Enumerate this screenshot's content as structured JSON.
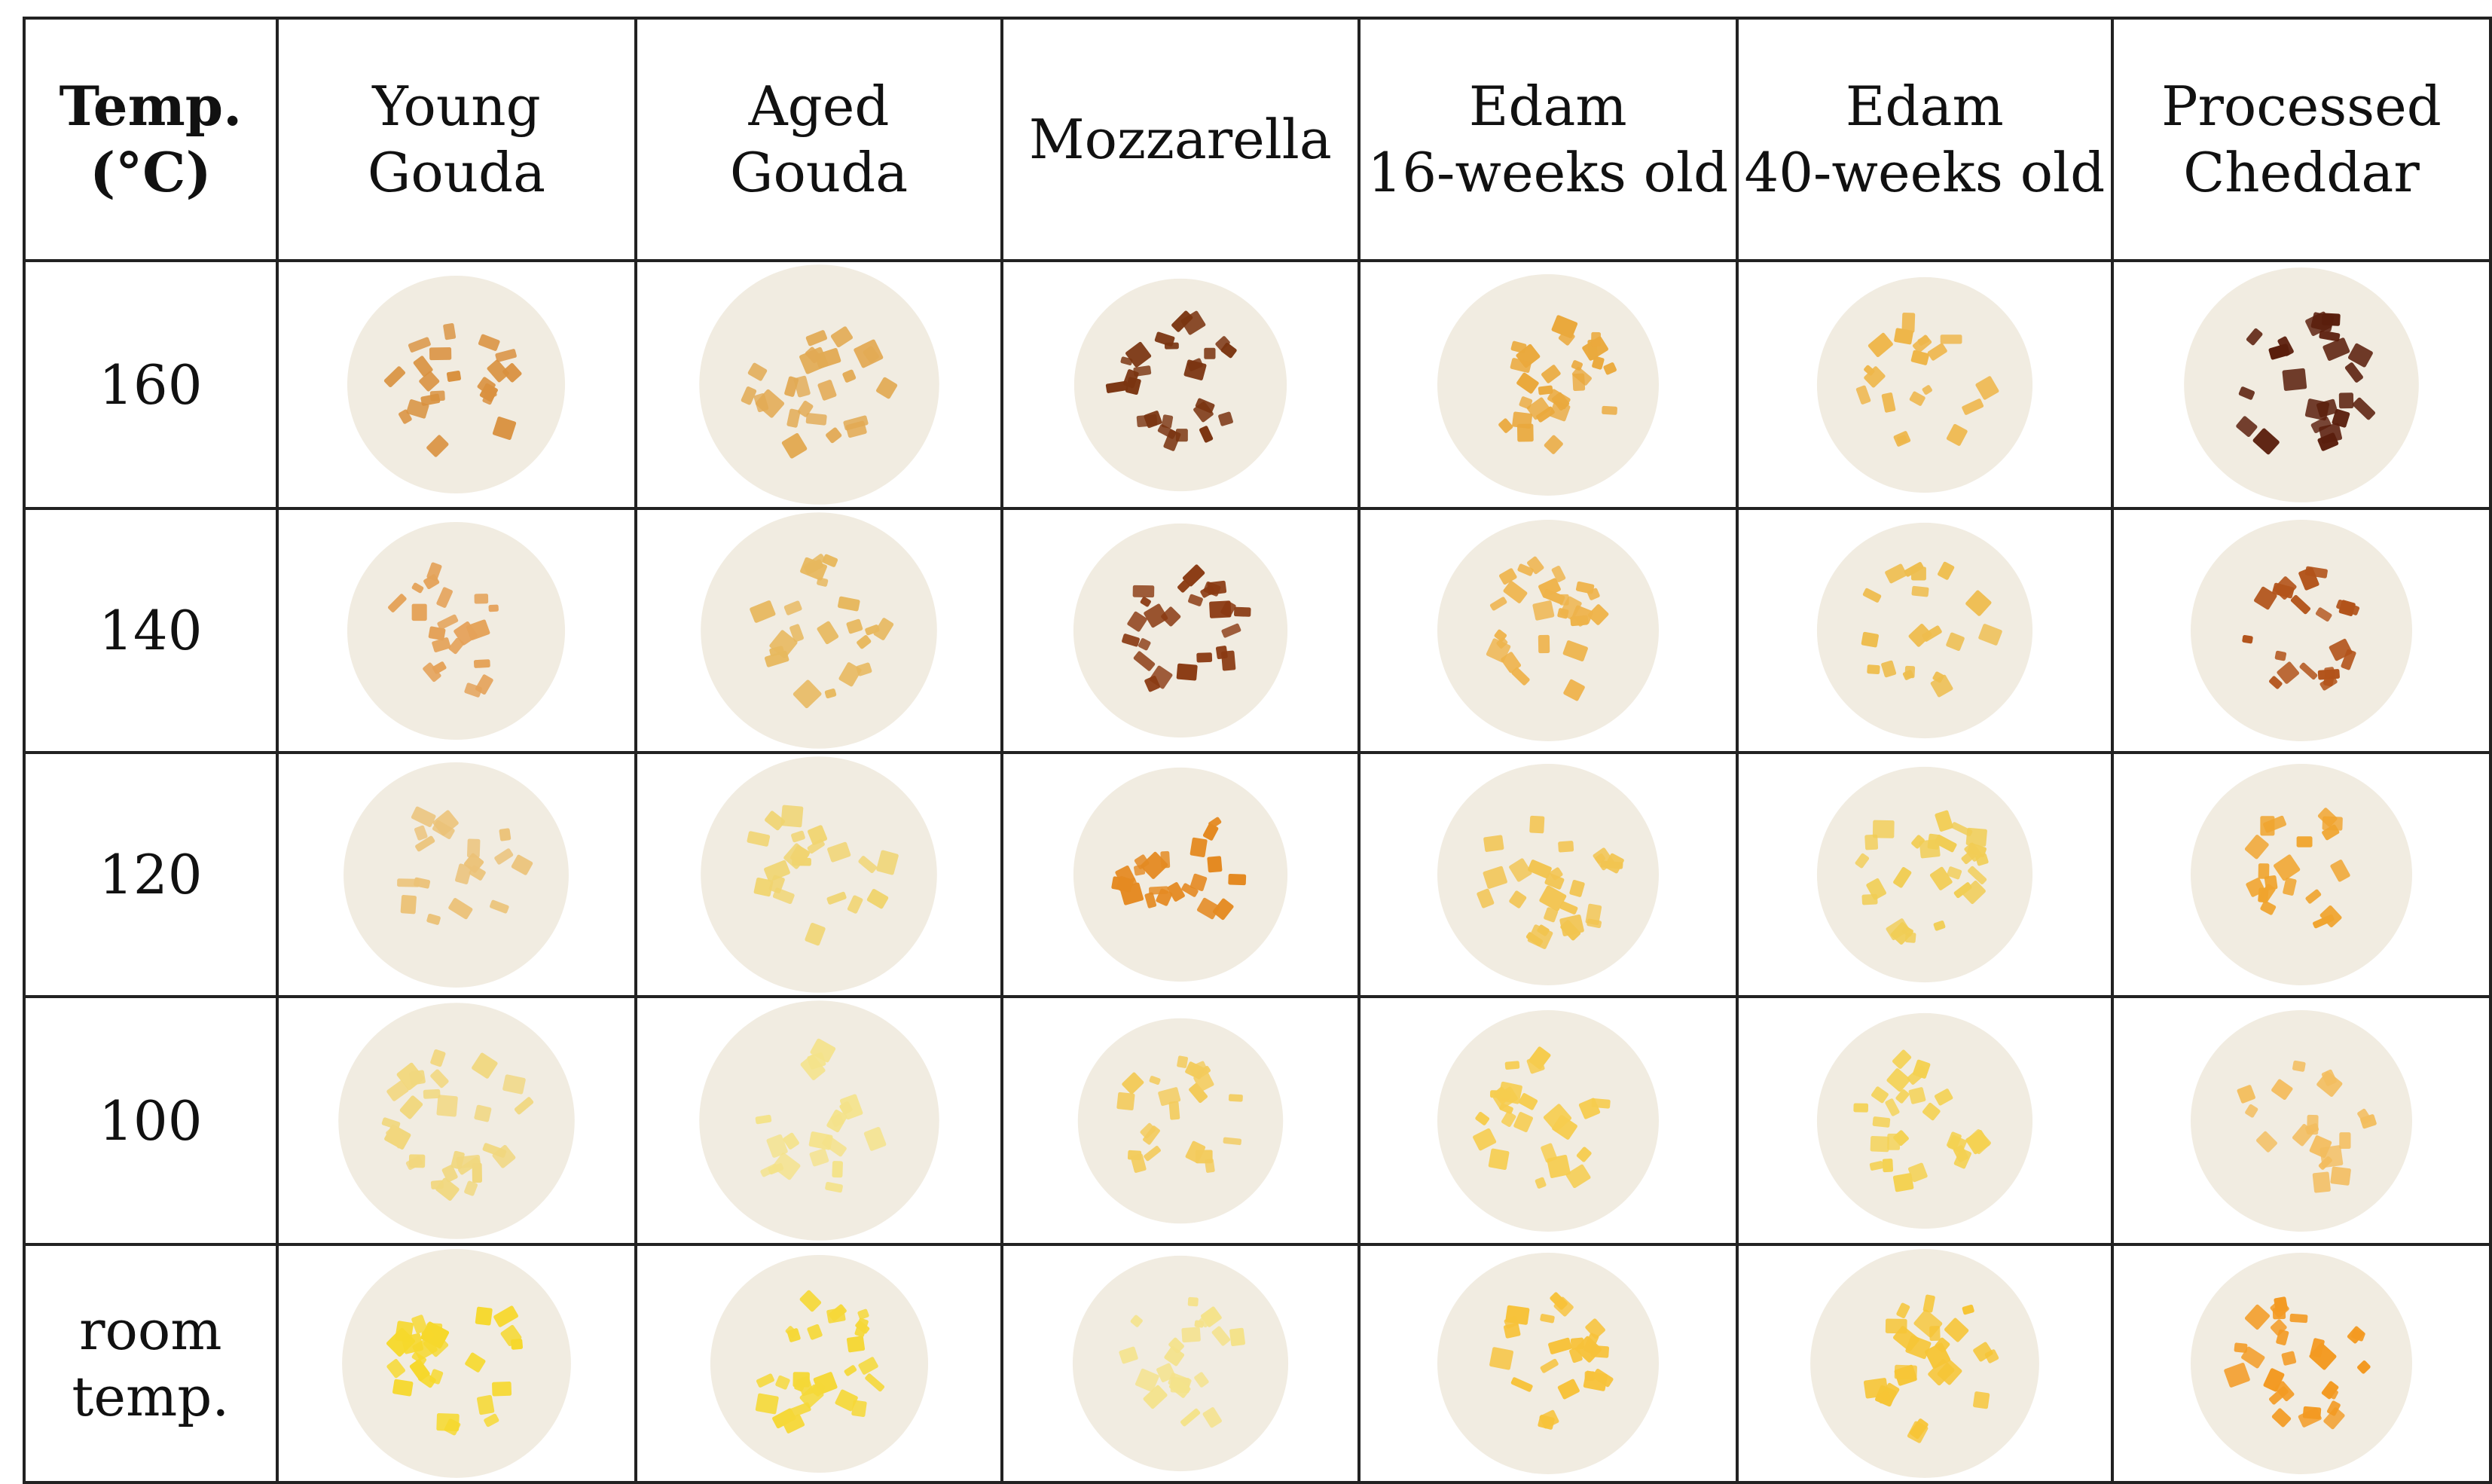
{
  "table": {
    "headers": [
      {
        "line1": "Temp.",
        "line2": "(°C)"
      },
      {
        "line1": "Young",
        "line2": "Gouda"
      },
      {
        "line1": "Aged",
        "line2": "Gouda"
      },
      {
        "line1": "Mozzarella",
        "line2": ""
      },
      {
        "line1": "Edam",
        "line2": "16-weeks old"
      },
      {
        "line1": "Edam",
        "line2": "40-weeks old"
      },
      {
        "line1": "Processed",
        "line2": "Cheddar"
      }
    ],
    "rows": [
      {
        "line1": "160",
        "line2": ""
      },
      {
        "line1": "140",
        "line2": ""
      },
      {
        "line1": "120",
        "line2": ""
      },
      {
        "line1": "100",
        "line2": ""
      },
      {
        "line1": "room",
        "line2": "temp."
      }
    ]
  },
  "colors": {
    "plate_background": "#f1ece1",
    "row_piece_colors": [
      [
        "#d9913f",
        "#e2aa54",
        "#7a3410",
        "#eaa93d",
        "#eeb64a",
        "#5a1e0c"
      ],
      [
        "#e4a259",
        "#e7b85e",
        "#8a3a12",
        "#eeb34a",
        "#eebd4e",
        "#b2531a"
      ],
      [
        "#ebc278",
        "#f0d470",
        "#e48a22",
        "#f2c450",
        "#f1cd55",
        "#f0a42e"
      ],
      [
        "#f1d77e",
        "#f4e28a",
        "#f3cb5c",
        "#f6cc4e",
        "#f4d152",
        "#f3bd5e"
      ],
      [
        "#f6d82c",
        "#f5d838",
        "#f4e28a",
        "#f7c23a",
        "#f6c536",
        "#f39a22"
      ]
    ]
  }
}
